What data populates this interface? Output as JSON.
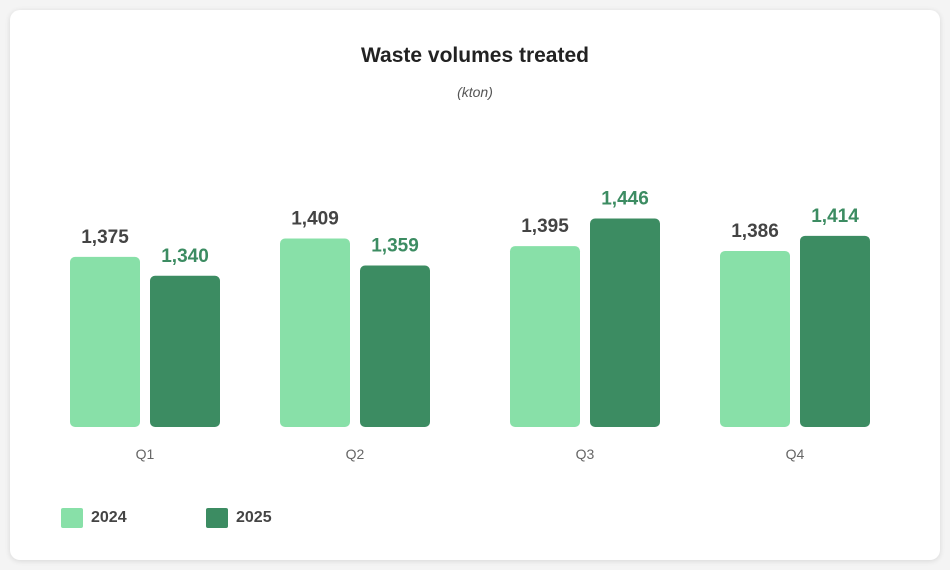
{
  "chart_data": {
    "type": "bar",
    "title": "Waste volumes treated",
    "subtitle": "(kton)",
    "categories": [
      "Q1",
      "Q2",
      "Q3",
      "Q4"
    ],
    "series": [
      {
        "name": "2024",
        "color": "#88E0A8",
        "label_color": "#444444",
        "values": [
          1375,
          1409,
          1395,
          1386
        ],
        "labels": [
          "1,375",
          "1,409",
          "1,395",
          "1,386"
        ]
      },
      {
        "name": "2025",
        "color": "#3C8C62",
        "label_color": "#3C8C62",
        "values": [
          1340,
          1359,
          1446,
          1414
        ],
        "labels": [
          "1,340",
          "1,359",
          "1,446",
          "1,414"
        ]
      }
    ],
    "ylim": [
      1060,
      1500
    ],
    "grid": false,
    "legend": "bottom-left"
  }
}
